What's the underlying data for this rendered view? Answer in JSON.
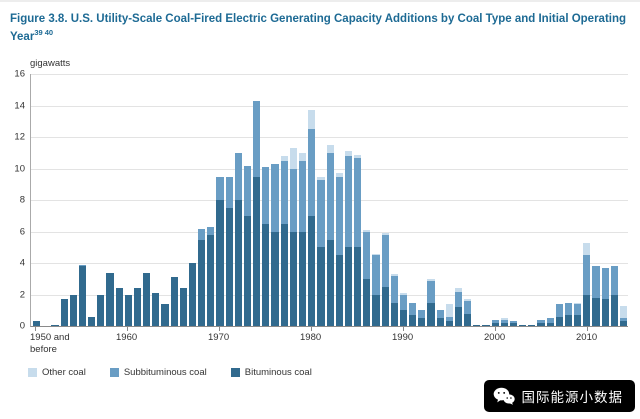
{
  "title": {
    "text": "Figure 3.8. U.S. Utility-Scale Coal-Fired Electric Generating Capacity Additions by Coal Type and Initial Operating Year",
    "superscript": "39 40"
  },
  "watermark": {
    "text": "国际能源小数据"
  },
  "chart_data": {
    "type": "bar",
    "stacked": true,
    "title": "U.S. Utility-Scale Coal-Fired Electric Generating Capacity Additions by Coal Type and Initial Operating Year",
    "ylabel": "gigawatts",
    "xlabel": "",
    "ylim": [
      0,
      16
    ],
    "ytick_step": 2,
    "grid": true,
    "legend_position": "bottom",
    "legend_order": [
      "Other coal",
      "Subbituminous coal",
      "Bituminous coal"
    ],
    "categories": [
      "1950 and before",
      "1951",
      "1952",
      "1953",
      "1954",
      "1955",
      "1956",
      "1957",
      "1958",
      "1959",
      "1960",
      "1961",
      "1962",
      "1963",
      "1964",
      "1965",
      "1966",
      "1967",
      "1968",
      "1969",
      "1970",
      "1971",
      "1972",
      "1973",
      "1974",
      "1975",
      "1976",
      "1977",
      "1978",
      "1979",
      "1980",
      "1981",
      "1982",
      "1983",
      "1984",
      "1985",
      "1986",
      "1987",
      "1988",
      "1989",
      "1990",
      "1991",
      "1992",
      "1993",
      "1994",
      "1995",
      "1996",
      "1997",
      "1998",
      "1999",
      "2000",
      "2001",
      "2002",
      "2003",
      "2004",
      "2005",
      "2006",
      "2007",
      "2008",
      "2009",
      "2010",
      "2011",
      "2012",
      "2013",
      "2014"
    ],
    "xticks": [
      {
        "index": 0,
        "label": "1950 and\nbefore",
        "align": "left"
      },
      {
        "index": 10,
        "label": "1960"
      },
      {
        "index": 20,
        "label": "1970"
      },
      {
        "index": 30,
        "label": "1980"
      },
      {
        "index": 40,
        "label": "1990"
      },
      {
        "index": 50,
        "label": "2000"
      },
      {
        "index": 60,
        "label": "2010"
      }
    ],
    "series": [
      {
        "name": "Bituminous coal",
        "color": "#316a8e",
        "values": [
          0.3,
          0,
          0.1,
          1.7,
          2.0,
          3.8,
          0.6,
          2.0,
          3.4,
          2.4,
          2.0,
          2.4,
          3.4,
          2.1,
          1.4,
          3.1,
          2.4,
          4.0,
          5.5,
          5.8,
          8.0,
          7.5,
          8.0,
          7.0,
          9.5,
          6.5,
          6.0,
          6.5,
          6.0,
          6.0,
          7.0,
          5.0,
          5.5,
          4.5,
          5.0,
          5.0,
          3.0,
          2.0,
          2.5,
          1.5,
          1.0,
          0.7,
          0.5,
          1.5,
          0.5,
          0.3,
          1.2,
          0.8,
          0.1,
          0.1,
          0.2,
          0.2,
          0.2,
          0.05,
          0.05,
          0.2,
          0.2,
          0.6,
          0.7,
          0.7,
          2.0,
          1.8,
          1.7,
          2.0,
          0.3
        ]
      },
      {
        "name": "Subbituminous coal",
        "color": "#699dc4",
        "values": [
          0,
          0,
          0,
          0,
          0,
          0.1,
          0,
          0,
          0,
          0,
          0,
          0,
          0,
          0,
          0,
          0,
          0,
          0,
          0.7,
          0.5,
          1.5,
          2.0,
          3.0,
          3.2,
          4.8,
          3.6,
          4.3,
          4.0,
          4.0,
          4.5,
          5.5,
          4.3,
          5.5,
          5.0,
          5.8,
          5.7,
          3.0,
          2.5,
          3.3,
          1.7,
          1.0,
          0.8,
          0.5,
          1.4,
          0.5,
          0.3,
          1.0,
          0.8,
          0,
          0,
          0.2,
          0.2,
          0.1,
          0,
          0,
          0.2,
          0.3,
          0.8,
          0.8,
          0.7,
          2.5,
          2.0,
          2.0,
          1.8,
          0.2
        ]
      },
      {
        "name": "Other coal",
        "color": "#c7dcec",
        "values": [
          0,
          0,
          0,
          0,
          0,
          0,
          0,
          0,
          0,
          0,
          0,
          0,
          0,
          0,
          0,
          0,
          0,
          0,
          0,
          0,
          0,
          0,
          0,
          0,
          0,
          0,
          0,
          0.3,
          1.3,
          0.5,
          1.2,
          0.2,
          0.5,
          0.2,
          0.3,
          0.2,
          0.1,
          0.1,
          0.1,
          0.1,
          0.1,
          0,
          0,
          0.1,
          0,
          0.8,
          0.2,
          0.1,
          0,
          0,
          0,
          0.1,
          0,
          0,
          0,
          0,
          0,
          0,
          0,
          0.1,
          0.8,
          0,
          0,
          0,
          0.8
        ]
      }
    ]
  }
}
